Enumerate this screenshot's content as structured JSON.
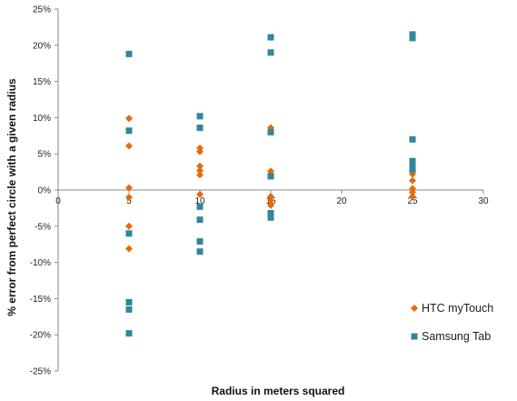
{
  "chart_data": {
    "type": "scatter",
    "xlabel": "Radius in meters squared",
    "ylabel": "% error from perfect circle with a given radius",
    "xlim": [
      0,
      30
    ],
    "ylim": [
      -25,
      25
    ],
    "x_ticks": [
      0,
      5,
      10,
      15,
      20,
      25,
      30
    ],
    "x_tick_labels": [
      "0",
      "5",
      "10",
      "15",
      "20",
      "25",
      "30"
    ],
    "y_ticks": [
      25,
      20,
      15,
      10,
      5,
      0,
      -5,
      -10,
      -15,
      -20,
      -25
    ],
    "y_tick_labels": [
      "25%",
      "20%",
      "15%",
      "10%",
      "5%",
      "0%",
      "-5%",
      "-10%",
      "-15%",
      "-20%",
      "-25%"
    ],
    "grid": false,
    "legend_position": "bottom-right",
    "series": [
      {
        "name": "HTC myTouch",
        "color": "#E46C0A",
        "marker": "diamond",
        "points": [
          {
            "x": 5,
            "y": 9.9
          },
          {
            "x": 5,
            "y": 6.1
          },
          {
            "x": 5,
            "y": 0.3
          },
          {
            "x": 5,
            "y": -1.0
          },
          {
            "x": 5,
            "y": -5.0
          },
          {
            "x": 5,
            "y": -8.1
          },
          {
            "x": 10,
            "y": 5.8
          },
          {
            "x": 10,
            "y": 5.3
          },
          {
            "x": 10,
            "y": 3.3
          },
          {
            "x": 10,
            "y": 2.7
          },
          {
            "x": 10,
            "y": 2.1
          },
          {
            "x": 10,
            "y": -0.6
          },
          {
            "x": 15,
            "y": 8.6
          },
          {
            "x": 15,
            "y": 2.6
          },
          {
            "x": 15,
            "y": 2.2
          },
          {
            "x": 15,
            "y": -0.9
          },
          {
            "x": 15,
            "y": -1.4
          },
          {
            "x": 15,
            "y": -2.1
          },
          {
            "x": 25,
            "y": 2.7
          },
          {
            "x": 25,
            "y": 2.2
          },
          {
            "x": 25,
            "y": 1.3
          },
          {
            "x": 25,
            "y": 0.2
          },
          {
            "x": 25,
            "y": -0.3
          },
          {
            "x": 25,
            "y": -0.9
          }
        ]
      },
      {
        "name": "Samsung Tab",
        "color": "#31859C",
        "marker": "square",
        "points": [
          {
            "x": 5,
            "y": 18.8
          },
          {
            "x": 5,
            "y": 8.2
          },
          {
            "x": 5,
            "y": -6.0
          },
          {
            "x": 5,
            "y": -15.5
          },
          {
            "x": 5,
            "y": -16.5
          },
          {
            "x": 5,
            "y": -19.8
          },
          {
            "x": 10,
            "y": 10.2
          },
          {
            "x": 10,
            "y": 8.6
          },
          {
            "x": 10,
            "y": -2.3
          },
          {
            "x": 10,
            "y": -4.1
          },
          {
            "x": 10,
            "y": -7.1
          },
          {
            "x": 10,
            "y": -8.5
          },
          {
            "x": 15,
            "y": 21.1
          },
          {
            "x": 15,
            "y": 19.0
          },
          {
            "x": 15,
            "y": 8.0
          },
          {
            "x": 15,
            "y": 1.9
          },
          {
            "x": 15,
            "y": -3.2
          },
          {
            "x": 15,
            "y": -3.8
          },
          {
            "x": 25,
            "y": 21.5
          },
          {
            "x": 25,
            "y": 21.0
          },
          {
            "x": 25,
            "y": 7.0
          },
          {
            "x": 25,
            "y": 4.0
          },
          {
            "x": 25,
            "y": 3.2
          },
          {
            "x": 25,
            "y": 2.8
          }
        ]
      }
    ]
  }
}
